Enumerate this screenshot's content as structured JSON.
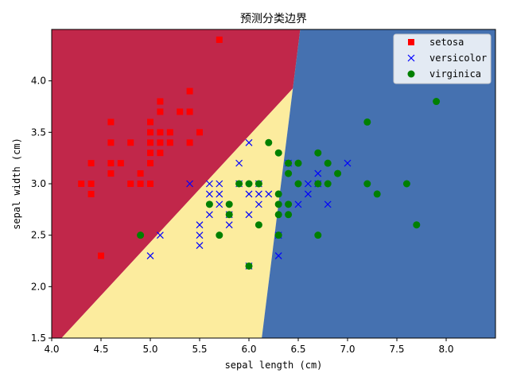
{
  "chart_data": {
    "type": "scatter",
    "title": "预测分类边界",
    "xlabel": "sepal length (cm)",
    "ylabel": "sepal width (cm)",
    "xlim": [
      4.0,
      8.5
    ],
    "ylim": [
      1.5,
      4.5
    ],
    "xticks": [
      4.0,
      4.5,
      5.0,
      5.5,
      6.0,
      6.5,
      7.0,
      7.5,
      8.0
    ],
    "xtick_labels": [
      "4.0",
      "4.5",
      "5.0",
      "5.5",
      "6.0",
      "6.5",
      "7.0",
      "7.5",
      "8.0"
    ],
    "yticks": [
      1.5,
      2.0,
      2.5,
      3.0,
      3.5,
      4.0
    ],
    "ytick_labels": [
      "1.5",
      "2.0",
      "2.5",
      "3.0",
      "3.5",
      "4.0"
    ],
    "grid": false,
    "legend_position": "top-right",
    "regions": [
      {
        "class": "setosa",
        "color": "#c1274a",
        "polygon": [
          [
            4.0,
            1.5
          ],
          [
            4.1,
            1.5
          ],
          [
            7.0,
            4.5
          ],
          [
            4.0,
            4.5
          ]
        ]
      },
      {
        "class": "versicolor",
        "color": "#fcec9e",
        "polygon": [
          [
            4.1,
            1.5
          ],
          [
            6.13,
            1.5
          ],
          [
            6.52,
            4.5
          ],
          [
            7.0,
            4.5
          ]
        ]
      },
      {
        "class": "virginica",
        "color": "#4571b0",
        "polygon": [
          [
            6.13,
            1.5
          ],
          [
            8.5,
            1.5
          ],
          [
            8.5,
            4.5
          ],
          [
            6.52,
            4.5
          ]
        ]
      }
    ],
    "series": [
      {
        "name": "setosa",
        "marker": "square",
        "color": "#ff0000",
        "points": [
          [
            4.3,
            3.0
          ],
          [
            4.4,
            2.9
          ],
          [
            4.4,
            3.0
          ],
          [
            4.4,
            3.2
          ],
          [
            4.5,
            2.3
          ],
          [
            4.6,
            3.1
          ],
          [
            4.6,
            3.2
          ],
          [
            4.6,
            3.4
          ],
          [
            4.6,
            3.6
          ],
          [
            4.7,
            3.2
          ],
          [
            4.8,
            3.0
          ],
          [
            4.8,
            3.4
          ],
          [
            4.9,
            3.0
          ],
          [
            4.9,
            3.1
          ],
          [
            5.0,
            3.0
          ],
          [
            5.0,
            3.2
          ],
          [
            5.0,
            3.3
          ],
          [
            5.0,
            3.4
          ],
          [
            5.0,
            3.5
          ],
          [
            5.0,
            3.6
          ],
          [
            5.1,
            3.3
          ],
          [
            5.1,
            3.4
          ],
          [
            5.1,
            3.5
          ],
          [
            5.1,
            3.7
          ],
          [
            5.1,
            3.8
          ],
          [
            5.2,
            3.4
          ],
          [
            5.2,
            3.5
          ],
          [
            5.3,
            3.7
          ],
          [
            5.4,
            3.4
          ],
          [
            5.4,
            3.7
          ],
          [
            5.4,
            3.9
          ],
          [
            5.5,
            3.5
          ],
          [
            5.7,
            4.4
          ]
        ]
      },
      {
        "name": "versicolor",
        "marker": "x",
        "color": "#0000ff",
        "points": [
          [
            5.0,
            2.3
          ],
          [
            5.1,
            2.5
          ],
          [
            5.4,
            3.0
          ],
          [
            5.5,
            2.4
          ],
          [
            5.5,
            2.5
          ],
          [
            5.5,
            2.6
          ],
          [
            5.6,
            2.7
          ],
          [
            5.6,
            2.9
          ],
          [
            5.6,
            3.0
          ],
          [
            5.7,
            2.8
          ],
          [
            5.7,
            2.9
          ],
          [
            5.7,
            3.0
          ],
          [
            5.8,
            2.6
          ],
          [
            5.8,
            2.7
          ],
          [
            5.9,
            3.0
          ],
          [
            5.9,
            3.2
          ],
          [
            6.0,
            2.2
          ],
          [
            6.0,
            2.7
          ],
          [
            6.0,
            2.9
          ],
          [
            6.0,
            3.4
          ],
          [
            6.1,
            2.8
          ],
          [
            6.1,
            2.9
          ],
          [
            6.1,
            3.0
          ],
          [
            6.2,
            2.9
          ],
          [
            6.3,
            2.3
          ],
          [
            6.3,
            2.5
          ],
          [
            6.4,
            3.2
          ],
          [
            6.5,
            2.8
          ],
          [
            6.6,
            2.9
          ],
          [
            6.6,
            3.0
          ],
          [
            6.7,
            3.0
          ],
          [
            6.7,
            3.1
          ],
          [
            6.8,
            2.8
          ],
          [
            7.0,
            3.2
          ]
        ]
      },
      {
        "name": "virginica",
        "marker": "circle",
        "color": "#008000",
        "points": [
          [
            4.9,
            2.5
          ],
          [
            5.6,
            2.8
          ],
          [
            5.7,
            2.5
          ],
          [
            5.8,
            2.7
          ],
          [
            5.8,
            2.8
          ],
          [
            5.9,
            3.0
          ],
          [
            6.0,
            2.2
          ],
          [
            6.0,
            3.0
          ],
          [
            6.1,
            2.6
          ],
          [
            6.1,
            3.0
          ],
          [
            6.2,
            3.4
          ],
          [
            6.3,
            2.5
          ],
          [
            6.3,
            2.7
          ],
          [
            6.3,
            2.8
          ],
          [
            6.3,
            2.9
          ],
          [
            6.3,
            3.3
          ],
          [
            6.4,
            2.7
          ],
          [
            6.4,
            2.8
          ],
          [
            6.4,
            3.1
          ],
          [
            6.4,
            3.2
          ],
          [
            6.5,
            3.0
          ],
          [
            6.5,
            3.2
          ],
          [
            6.7,
            2.5
          ],
          [
            6.7,
            3.0
          ],
          [
            6.7,
            3.3
          ],
          [
            6.8,
            3.0
          ],
          [
            6.8,
            3.2
          ],
          [
            6.9,
            3.1
          ],
          [
            7.2,
            3.0
          ],
          [
            7.2,
            3.6
          ],
          [
            7.3,
            2.9
          ],
          [
            7.6,
            3.0
          ],
          [
            7.7,
            2.6
          ],
          [
            7.9,
            3.8
          ]
        ]
      }
    ]
  }
}
